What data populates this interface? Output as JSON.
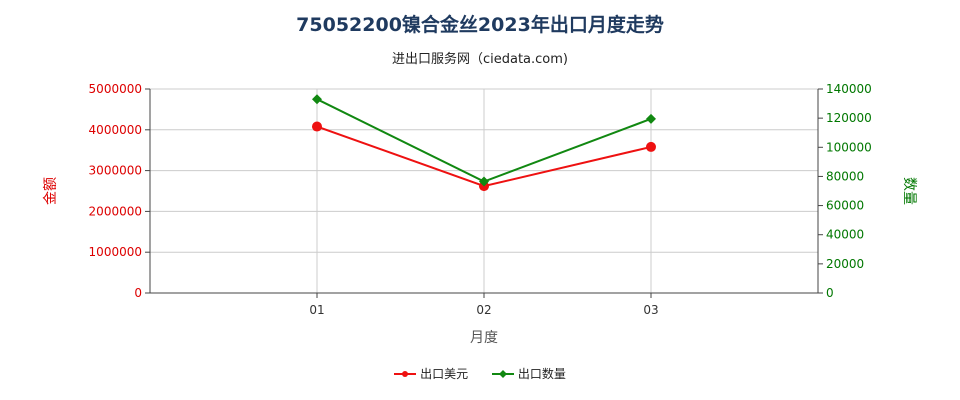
{
  "title": "75052200镍合金丝2023年出口月度走势",
  "subtitle": "进出口服务网（ciedata.com)",
  "colors": {
    "left_axis": "#dd0000",
    "right_axis": "#007700",
    "grid": "#cccccc"
  },
  "chart_data": {
    "type": "line",
    "categories": [
      "01",
      "02",
      "03"
    ],
    "xlabel": "月度",
    "ylabel_left": "金额",
    "ylabel_right": "数量",
    "ylim_left": [
      0,
      5000000
    ],
    "ylim_right": [
      0,
      140000
    ],
    "yticks_left": [
      0,
      1000000,
      2000000,
      3000000,
      4000000,
      5000000
    ],
    "yticks_right": [
      0,
      20000,
      40000,
      60000,
      80000,
      100000,
      120000,
      140000
    ],
    "grid": true,
    "legend_position": "bottom",
    "series": [
      {
        "name": "出口美元",
        "axis": "left",
        "color": "#ee1111",
        "marker": "circle",
        "values": [
          4080000,
          2620000,
          3580000
        ]
      },
      {
        "name": "出口数量",
        "axis": "right",
        "color": "#118811",
        "marker": "diamond",
        "values": [
          133000,
          76500,
          119500
        ]
      }
    ]
  }
}
